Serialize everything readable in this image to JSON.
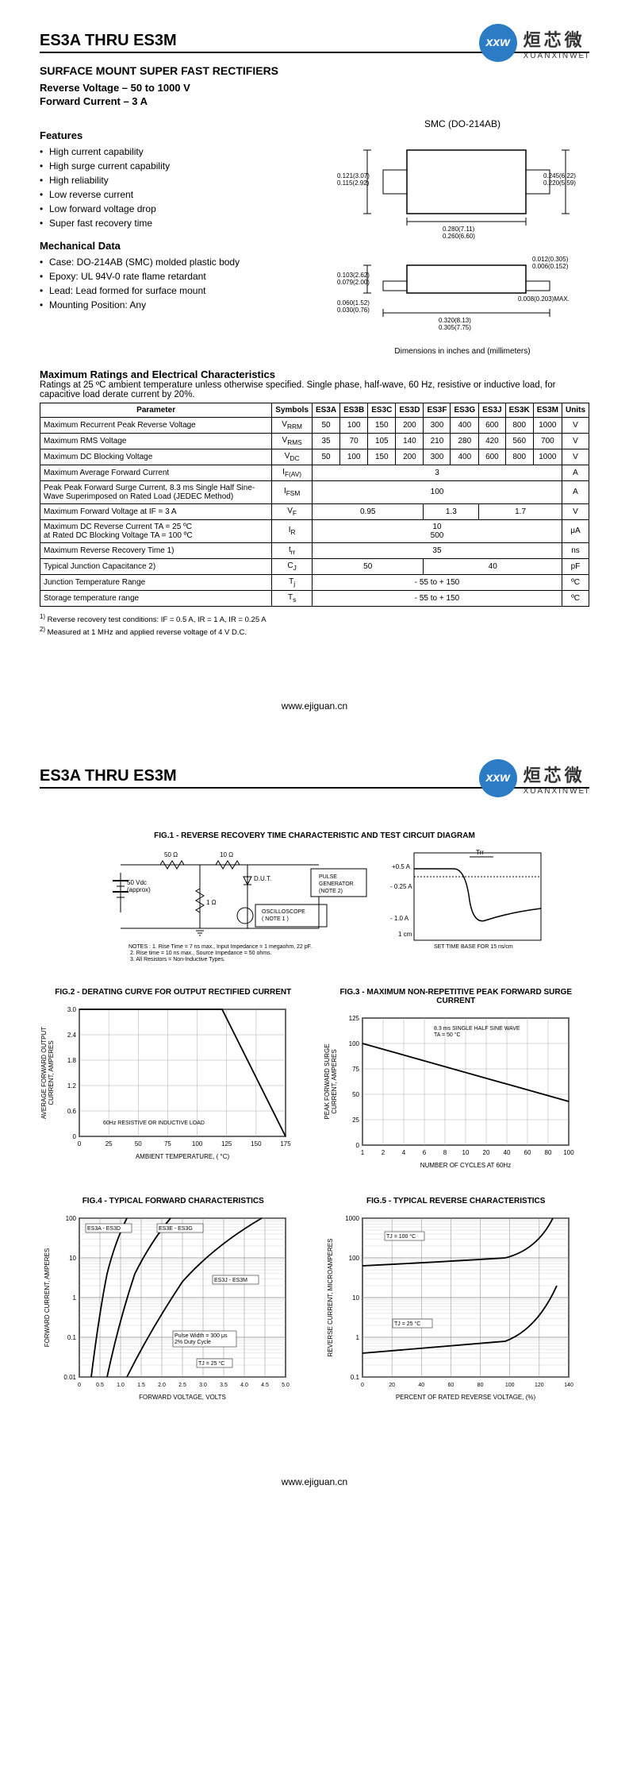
{
  "header": {
    "title": "ES3A THRU ES3M",
    "logo_abbr": "xxw",
    "logo_chinese": "烜芯微",
    "logo_english": "XUANXINWEI"
  },
  "page1": {
    "subtitle": "SURFACE MOUNT SUPER FAST RECTIFIERS",
    "rev_voltage": "Reverse Voltage – 50 to 1000 V",
    "fwd_current": "Forward Current – 3 A",
    "package_label": "SMC (DO-214AB)",
    "features_h": "Features",
    "features": [
      "High current capability",
      "High surge current capability",
      "High reliability",
      "Low reverse current",
      "Low forward voltage drop",
      "Super fast recovery time"
    ],
    "mech_h": "Mechanical Data",
    "mech": [
      "Case: DO-214AB (SMC) molded plastic body",
      "Epoxy: UL 94V-0 rate flame retardant",
      "Lead: Lead formed for surface mount",
      "Mounting Position: Any"
    ],
    "dim_note": "Dimensions in inches and (millimeters)",
    "dims": {
      "d1": "0.121(3.07)\n0.115(2.92)",
      "d2": "0.245(6.22)\n0.220(5.59)",
      "d3": "0.280(7.11)\n0.260(6.60)",
      "d4": "0.103(2.62)\n0.079(2.00)",
      "d5": "0.060(1.52)\n0.030(0.76)",
      "d6": "0.320(8.13)\n0.305(7.75)",
      "d7": "0.012(0.305)\n0.006(0.152)",
      "d8": "0.008(0.203)MAX."
    },
    "ratings_h": "Maximum Ratings and Electrical Characteristics",
    "ratings_note": "Ratings at 25 ºC ambient temperature unless otherwise specified. Single phase, half-wave, 60 Hz, resistive or inductive load, for capacitive load derate current by 20%.",
    "table": {
      "headers": [
        "Parameter",
        "Symbols",
        "ES3A",
        "ES3B",
        "ES3C",
        "ES3D",
        "ES3F",
        "ES3G",
        "ES3J",
        "ES3K",
        "ES3M",
        "Units"
      ],
      "rows": [
        {
          "param": "Maximum Recurrent Peak Reverse Voltage",
          "sym": "V",
          "sub": "RRM",
          "vals": [
            "50",
            "100",
            "150",
            "200",
            "300",
            "400",
            "600",
            "800",
            "1000"
          ],
          "unit": "V"
        },
        {
          "param": "Maximum RMS Voltage",
          "sym": "V",
          "sub": "RMS",
          "vals": [
            "35",
            "70",
            "105",
            "140",
            "210",
            "280",
            "420",
            "560",
            "700"
          ],
          "unit": "V"
        },
        {
          "param": "Maximum DC Blocking Voltage",
          "sym": "V",
          "sub": "DC",
          "vals": [
            "50",
            "100",
            "150",
            "200",
            "300",
            "400",
            "600",
            "800",
            "1000"
          ],
          "unit": "V"
        },
        {
          "param": "Maximum Average Forward Current",
          "sym": "I",
          "sub": "F(AV)",
          "merged": "3",
          "unit": "A"
        },
        {
          "param": "Peak Peak Forward Surge Current, 8.3 ms Single Half Sine-Wave Superimposed on Rated Load (JEDEC Method)",
          "sym": "I",
          "sub": "FSM",
          "merged": "100",
          "unit": "A"
        },
        {
          "param": "Maximum Forward Voltage at IF = 3 A",
          "sym": "V",
          "sub": "F",
          "groups": [
            {
              "span": 4,
              "val": "0.95"
            },
            {
              "span": 2,
              "val": "1.3"
            },
            {
              "span": 3,
              "val": "1.7"
            }
          ],
          "unit": "V"
        },
        {
          "param": "Maximum DC Reverse Current      TA = 25 ºC\nat Rated DC Blocking Voltage      TA = 100 ºC",
          "sym": "I",
          "sub": "R",
          "stacked": [
            "10",
            "500"
          ],
          "unit": "μA"
        },
        {
          "param": "Maximum Reverse Recovery Time 1)",
          "sym": "t",
          "sub": "rr",
          "merged": "35",
          "unit": "ns"
        },
        {
          "param": "Typical Junction Capacitance 2)",
          "sym": "C",
          "sub": "J",
          "groups": [
            {
              "span": 4,
              "val": "50"
            },
            {
              "span": 5,
              "val": "40"
            }
          ],
          "unit": "pF"
        },
        {
          "param": "Junction Temperature Range",
          "sym": "T",
          "sub": "j",
          "merged": "- 55 to + 150",
          "unit": "ºC"
        },
        {
          "param": "Storage temperature range",
          "sym": "T",
          "sub": "s",
          "merged": "- 55 to + 150",
          "unit": "ºC"
        }
      ]
    },
    "footnote1": "1) Reverse recovery test conditions: IF = 0.5 A, IR = 1 A, IR = 0.25 A",
    "footnote2": "2) Measured at 1 MHz and applied reverse voltage of 4 V D.C.",
    "footer_url": "www.ejiguan.cn"
  },
  "page2": {
    "fig1_title": "FIG.1 - REVERSE RECOVERY TIME CHARACTERISTIC AND TEST CIRCUIT DIAGRAM",
    "fig1_labels": {
      "r1": "50 Ω",
      "r2": "10 Ω",
      "vdc": "50 Vdc\n(approx)",
      "r3": "1 Ω",
      "dut": "D.U.T.",
      "pulse": "PULSE\nGENERATOR\n(NOTE 2)",
      "osc": "OSCILLOSCOPE\n( NOTE 1 )",
      "notes": "NOTES : 1. Rise Time = 7 ns max., Input Impedance = 1 megaohm, 22 pF.\n             2. Rise time = 10 ns max., Source Impedance = 50 ohms.\n             3. All Resistors = Non-Inductive Types.",
      "y1": "+0.5 A",
      "y2": "- 0.25 A",
      "y3": "- 1.0 A",
      "trr": "Trr",
      "cm": "1 cm",
      "set": "SET TIME BASE FOR  15 ns/cm"
    },
    "fig2_title": "FIG.2 - DERATING CURVE FOR OUTPUT RECTIFIED CURRENT",
    "fig2": {
      "ylabel": "AVERAGE FORWARD OUTPUT\nCURRENT, AMPERES",
      "xlabel": "AMBIENT TEMPERATURE, ( °C)",
      "yticks": [
        "0",
        "0.6",
        "1.2",
        "1.8",
        "2.4",
        "3.0"
      ],
      "xticks": [
        "0",
        "25",
        "50",
        "75",
        "100",
        "125",
        "150",
        "175"
      ],
      "note": "60Hz RESISTIVE OR INDUCTIVE LOAD"
    },
    "fig3_title": "FIG.3 - MAXIMUM NON-REPETITIVE PEAK FORWARD SURGE CURRENT",
    "fig3": {
      "ylabel": "PEAK FORWARD SURGE\nCURRENT, AMPERES",
      "xlabel": "NUMBER OF CYCLES AT 60Hz",
      "yticks": [
        "0",
        "25",
        "50",
        "75",
        "100",
        "125"
      ],
      "xticks": [
        "1",
        "2",
        "4",
        "6",
        "8",
        "10",
        "20",
        "40",
        "60",
        "80",
        "100"
      ],
      "note": "8.3 ms SINGLE HALF SINE WAVE\nTA = 50 °C"
    },
    "fig4_title": "FIG.4 - TYPICAL FORWARD  CHARACTERISTICS",
    "fig4": {
      "ylabel": "FORWARD CURRENT, AMPERES",
      "xlabel": "FORWARD VOLTAGE, VOLTS",
      "yticks": [
        "0.01",
        "0.1",
        "1",
        "10",
        "100"
      ],
      "xticks": [
        "0",
        "0.5 ",
        "1.0 ",
        "1.5 ",
        "2.0 ",
        "2.5 ",
        "3.0 ",
        "3.5 ",
        "4.0 ",
        "4.5 ",
        "5.0 "
      ],
      "s1": "ES3A - ES3D",
      "s2": "ES3E - ES3G",
      "s3": "ES3J - ES3M",
      "note": "Pulse Width = 300  μs\n2% Duty Cycle",
      "tj": "TJ = 25 °C"
    },
    "fig5_title": "FIG.5 - TYPICAL REVERSE CHARACTERISTICS",
    "fig5": {
      "ylabel": "REVERSE CURRENT, MICROAMPERES",
      "xlabel": "PERCENT OF RATED REVERSE VOLTAGE, (%)",
      "yticks": [
        "0.1",
        "1",
        "10",
        "100",
        "1000"
      ],
      "xticks": [
        "0",
        "20",
        "40",
        "60",
        "80",
        "100",
        "120",
        "140"
      ],
      "t1": "TJ = 100 °C",
      "t2": "TJ = 25 °C"
    },
    "footer_url": "www.ejiguan.cn"
  },
  "colors": {
    "logo": "#2b7cc4",
    "border": "#000000",
    "grid": "#808080"
  }
}
